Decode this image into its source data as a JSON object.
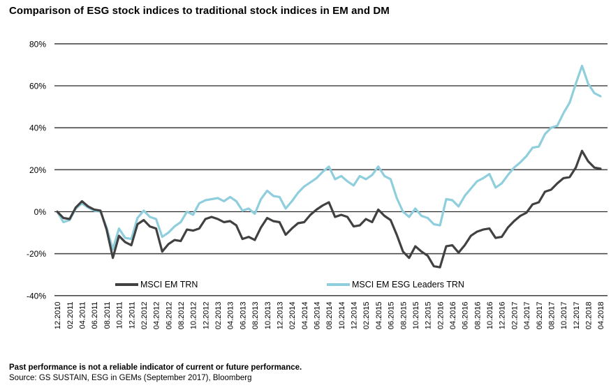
{
  "title": "Comparison of ESG stock indices to traditional stock indices in EM and DM",
  "legend": {
    "em_label": "MSCI EM TRN",
    "esg_label": "MSCI EM ESG Leaders TRN"
  },
  "footer": {
    "disclaimer": "Past performance is not a reliable indicator of current or future performance.",
    "source": "Source: GS SUSTAIN, ESG in GEMs (September 2017), Bloomberg"
  },
  "colors": {
    "em_line": "#414141",
    "esg_line": "#8fcedd",
    "gridline": "#4a4a4a",
    "zero_line": "#2b2b2b",
    "text": "#000000"
  },
  "chart_data": {
    "type": "line",
    "title": "Comparison of ESG stock indices to traditional stock indices in EM and DM",
    "xlabel": "",
    "ylabel": "",
    "ylim": [
      -40,
      80
    ],
    "ytick_step": 20,
    "ytick_labels": [
      "80%",
      "60%",
      "40%",
      "20%",
      "0%",
      "-20%",
      "-40%"
    ],
    "grid": "horizontal-only",
    "legend_position": "bottom-inside",
    "x_start": "12.2010",
    "x_step_months": 1,
    "x_tick_every_months": 2,
    "x_tick_labels": [
      "12.2010",
      "02.2011",
      "04.2011",
      "06.2011",
      "08.2011",
      "10.2011",
      "12.2011",
      "02.2012",
      "04.2012",
      "06.2012",
      "08.2012",
      "10.2012",
      "12.2012",
      "02.2013",
      "04.2013",
      "06.2013",
      "08.2013",
      "10.2013",
      "12.2013",
      "02.2014",
      "04.2014",
      "06.2014",
      "08.2014",
      "10.2014",
      "12.2014",
      "02.2015",
      "04.2015",
      "06.2015",
      "08.2015",
      "10.2015",
      "12.2015",
      "02.2016",
      "04.2016",
      "06.2016",
      "08.2016",
      "10.2016",
      "12.2016",
      "02.2017",
      "04.2017",
      "06.2017",
      "08.2017",
      "10.2017",
      "12.2017",
      "02.2018",
      "04.2018"
    ],
    "unit": "percent_cumulative_return",
    "series": [
      {
        "name": "MSCI EM TRN",
        "color": "#414141",
        "values": [
          0,
          -3,
          -3.5,
          2,
          5,
          2.5,
          1,
          0.5,
          -8.5,
          -22,
          -11.5,
          -14.5,
          -16,
          -6,
          -4,
          -7,
          -8,
          -19,
          -15.5,
          -13.5,
          -14,
          -8.5,
          -9,
          -8,
          -3.5,
          -2.5,
          -3.5,
          -5,
          -4.5,
          -6.5,
          -13,
          -12,
          -13.5,
          -7.5,
          -3,
          -4.5,
          -5,
          -11,
          -8,
          -5.5,
          -5,
          -1.5,
          1,
          3,
          4.5,
          -2.5,
          -1.5,
          -2.5,
          -7,
          -6.5,
          -3.5,
          -5,
          1,
          -2,
          -4,
          -11,
          -19,
          -22,
          -16.5,
          -19,
          -21,
          -26,
          -26.5,
          -16.5,
          -16,
          -19.5,
          -16,
          -11.5,
          -9.5,
          -8.5,
          -8,
          -12.5,
          -12,
          -7.5,
          -4.5,
          -2,
          -0.5,
          3.5,
          4.5,
          9.5,
          10.5,
          13.5,
          16,
          16.5,
          21,
          29,
          24,
          21,
          20.5
        ]
      },
      {
        "name": "MSCI EM ESG Leaders TRN",
        "color": "#8fcedd",
        "values": [
          0,
          -5,
          -4,
          1.5,
          4,
          2,
          0.5,
          0,
          -7.5,
          -18,
          -8,
          -12.5,
          -13,
          -3,
          0.5,
          -2.5,
          -3.5,
          -12,
          -10,
          -7,
          -5,
          0,
          -1.5,
          4,
          5.5,
          6,
          6.5,
          5,
          7,
          5,
          0.5,
          1.5,
          -1,
          6,
          10,
          7.5,
          7,
          1.5,
          5,
          9,
          12,
          14,
          16,
          19,
          21.5,
          15.5,
          17,
          14.5,
          12.5,
          17,
          15.5,
          17.5,
          21.5,
          17,
          15.5,
          6.5,
          0,
          -2.5,
          1.5,
          -2,
          -3,
          -6,
          -6.5,
          6,
          5.5,
          2.5,
          7.5,
          11,
          14.5,
          16,
          18,
          11.5,
          13.5,
          17.5,
          21,
          23.5,
          26.5,
          30.5,
          31,
          37,
          40,
          41,
          47,
          52,
          61,
          69.5,
          61,
          56.5,
          55
        ]
      }
    ]
  }
}
